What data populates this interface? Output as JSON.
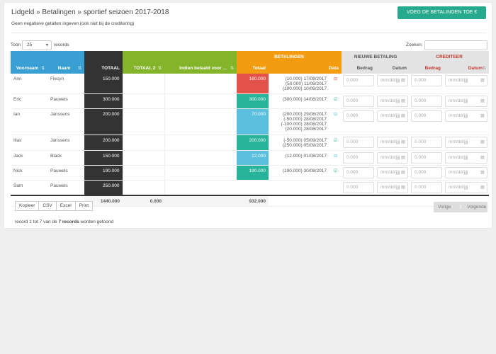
{
  "header": {
    "title": "Lidgeld » Betalingen » sportief seizoen 2017-2018",
    "subtitle": "Geen negatieve getallen ingeven (ook niet bij de creditering)",
    "add_button": "VOEG DE BETALINGEN TOE €"
  },
  "controls": {
    "show_label": "Toon",
    "page_size": "25",
    "records_label": "records",
    "search_label": "Zoeken:"
  },
  "table": {
    "group_betalingen": "BETALINGEN",
    "group_nieuwe": "NIEUWE BETALING",
    "group_crediteer": "CREDITEER",
    "col_voornaam": "Voornaam",
    "col_naam": "Naam",
    "col_totaal": "TOTAAL",
    "col_totaal2": "TOTAAL 2",
    "col_indien": "Indien betaald voor ...",
    "col_bet_totaal": "Totaal",
    "col_bet_data": "Data",
    "col_nb_bedrag": "Bedrag",
    "col_nb_datum": "Datum",
    "col_cr_bedrag": "Bedrag",
    "col_cr_datum": "Datum",
    "amount_placeholder": "0.000",
    "date_placeholder": "mm/dd/jjjj",
    "rows": [
      {
        "voornaam": "Ann",
        "naam": "Flecyn",
        "totaal": "150.000",
        "bet_totaal": "160.000",
        "color": "red",
        "data": "(10.000) 17/08/2017\n(50.000) 11/08/2017\n(100.000) 10/08/2017",
        "icon": "⊟",
        "icon_color": "#e2524b"
      },
      {
        "voornaam": "Eric",
        "naam": "Pauwels",
        "totaal": "300.000",
        "bet_totaal": "300.000",
        "color": "teal",
        "data": "(300.000) 14/08/2017",
        "icon": "☑",
        "icon_color": "#26b39a"
      },
      {
        "voornaam": "Ian",
        "naam": "Janssens",
        "totaal": "200.000",
        "bet_totaal": "70.000",
        "color": "sky",
        "data": "(200.000) 29/08/2017\n(-50.000) 28/08/2017\n(-100.000) 28/08/2017\n(20.000) 28/08/2017",
        "icon": "⊟",
        "icon_color": "#5bc0de"
      },
      {
        "voornaam": "Ilias",
        "naam": "Janssens",
        "totaal": "200.000",
        "bet_totaal": "200.000",
        "color": "teal",
        "data": "(-50.000) 05/09/2017\n(250.000) 05/09/2017",
        "icon": "☑",
        "icon_color": "#26b39a"
      },
      {
        "voornaam": "Jack",
        "naam": "Black",
        "totaal": "150.000",
        "bet_totaal": "12.000",
        "color": "sky",
        "data": "(12.000) 01/08/2017",
        "icon": "⊟",
        "icon_color": "#5bc0de"
      },
      {
        "voornaam": "Nick",
        "naam": "Pauwels",
        "totaal": "190.000",
        "bet_totaal": "190.000",
        "color": "teal",
        "data": "(190.000) 30/08/2017",
        "icon": "☑",
        "icon_color": "#26b39a"
      },
      {
        "voornaam": "Sam",
        "naam": "Pauwels",
        "totaal": "250.000",
        "bet_totaal": "",
        "color": "grey",
        "data": "",
        "icon": "",
        "icon_color": "#777"
      }
    ],
    "footer": {
      "totaal": "1440.000",
      "totaal2": "0.000",
      "bet_totaal": "932.000"
    }
  },
  "buttons": {
    "copy": "Kopieer",
    "csv": "CSV",
    "excel": "Excel",
    "print": "Print"
  },
  "pager": {
    "prev": "Vorige",
    "page": "1",
    "next": "Volgende"
  },
  "info": {
    "prefix": "record 1 tot 7 van de ",
    "count": "7 records",
    "suffix": " worden getoond"
  }
}
